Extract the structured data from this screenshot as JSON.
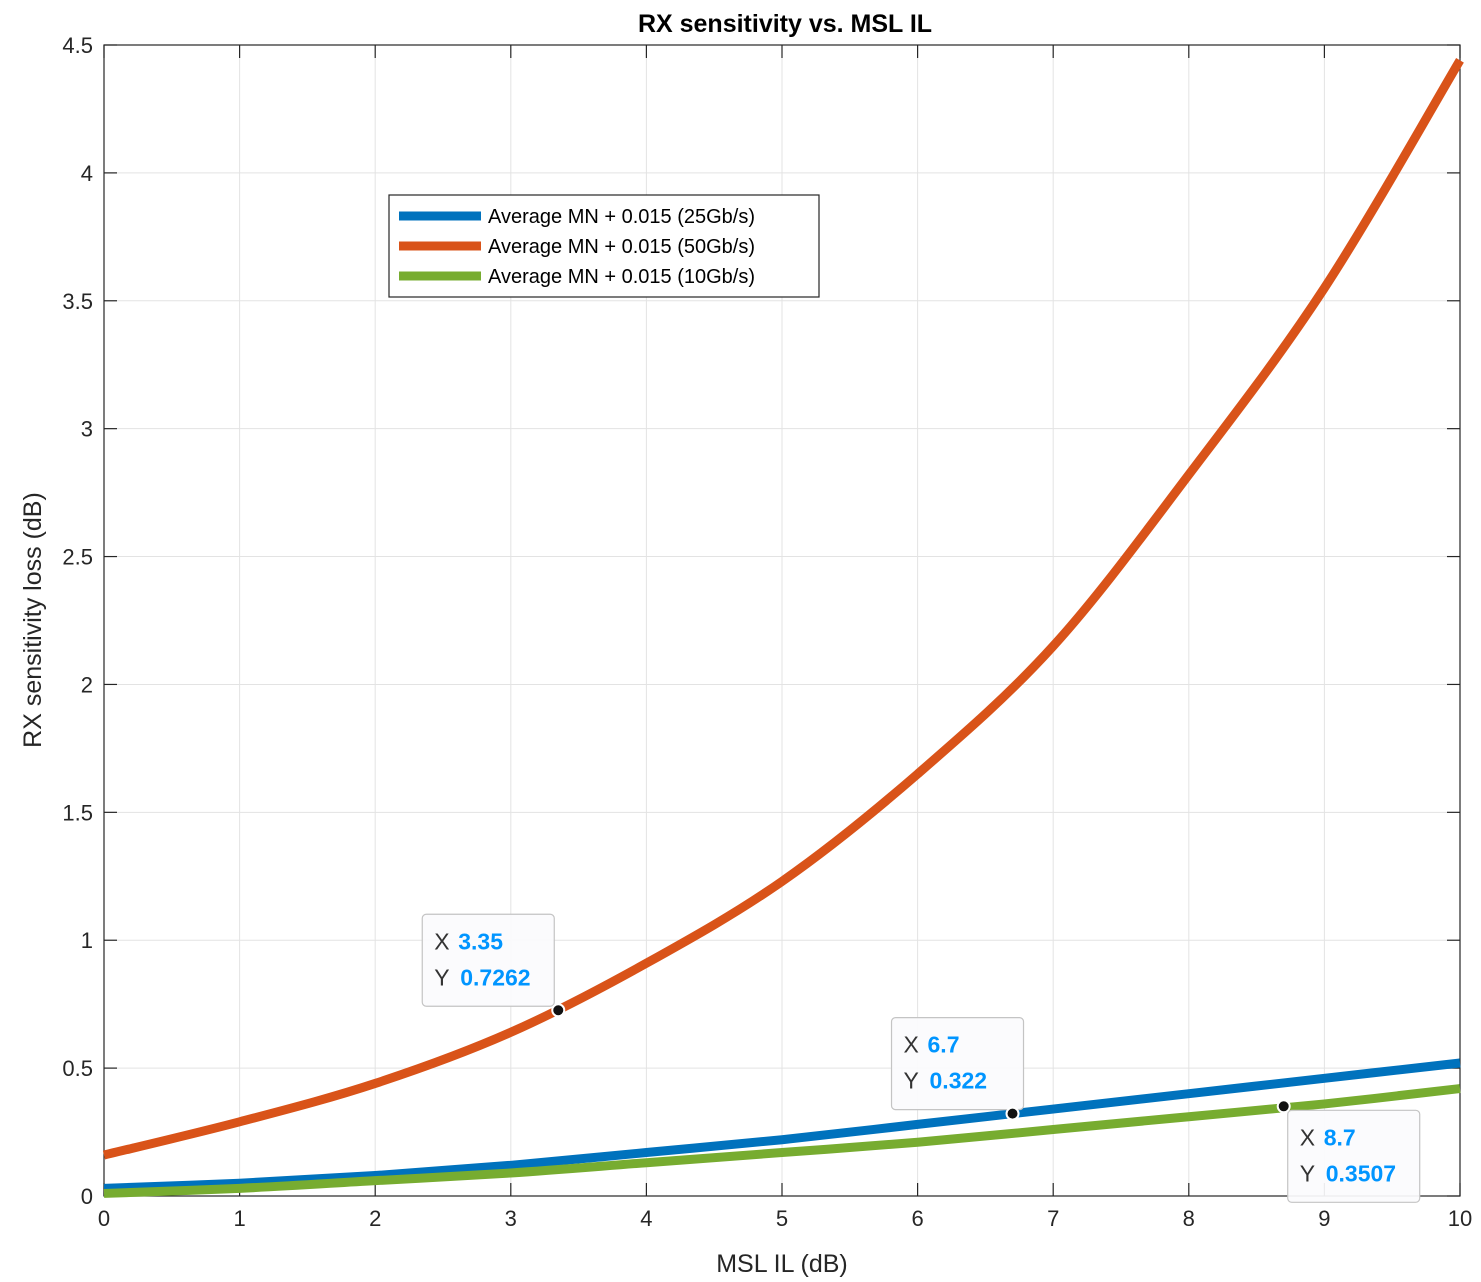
{
  "chart_data": {
    "type": "line",
    "title": "RX sensitivity vs. MSL IL",
    "xlabel": "MSL IL (dB)",
    "ylabel": "RX sensitivity loss (dB)",
    "xlim": [
      0,
      10
    ],
    "ylim": [
      0,
      4.5
    ],
    "xticks": [
      "0",
      "1",
      "2",
      "3",
      "4",
      "5",
      "6",
      "7",
      "8",
      "9",
      "10"
    ],
    "yticks": [
      "0",
      "0.5",
      "1",
      "1.5",
      "2",
      "2.5",
      "3",
      "3.5",
      "4",
      "4.5"
    ],
    "grid": true,
    "legend_position": "upper-left-center",
    "x": [
      0,
      1,
      2,
      3,
      4,
      5,
      6,
      7,
      8,
      9,
      10
    ],
    "series": [
      {
        "name": "Average MN + 0.015 (25Gb/s)",
        "color": "#0072BD",
        "values": [
          0.03,
          0.05,
          0.08,
          0.12,
          0.17,
          0.22,
          0.28,
          0.34,
          0.4,
          0.46,
          0.52
        ]
      },
      {
        "name": "Average MN + 0.015 (50Gb/s)",
        "color": "#D95319",
        "values": [
          0.16,
          0.29,
          0.44,
          0.64,
          0.91,
          1.23,
          1.65,
          2.15,
          2.82,
          3.55,
          4.44
        ]
      },
      {
        "name": "Average MN + 0.015 (10Gb/s)",
        "color": "#77AC30",
        "values": [
          0.01,
          0.03,
          0.06,
          0.09,
          0.13,
          0.17,
          0.21,
          0.26,
          0.31,
          0.36,
          0.42
        ]
      }
    ],
    "datatips": [
      {
        "series": 1,
        "x_label": "X",
        "x_value": "3.35",
        "y_label": "Y",
        "y_value": "0.7262",
        "x": 3.35,
        "y": 0.7262
      },
      {
        "series": 0,
        "x_label": "X",
        "x_value": "6.7",
        "y_label": "Y",
        "y_value": "0.322",
        "x": 6.7,
        "y": 0.322
      },
      {
        "series": 2,
        "x_label": "X",
        "x_value": "8.7",
        "y_label": "Y",
        "y_value": "0.3507",
        "x": 8.7,
        "y": 0.3507
      }
    ],
    "datatip_value_color": "#0095FF"
  }
}
